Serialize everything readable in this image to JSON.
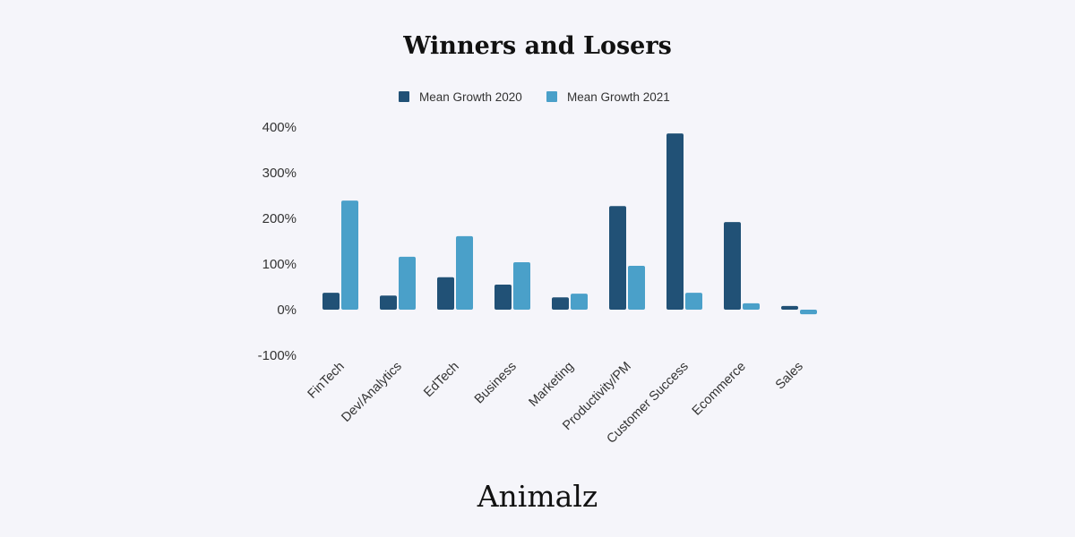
{
  "chart_data": {
    "type": "bar",
    "title": "Winners and Losers",
    "xlabel": "",
    "ylabel": "",
    "categories": [
      "FinTech",
      "Dev/Analytics",
      "EdTech",
      "Business",
      "Marketing",
      "Productivity/PM",
      "Customer Success",
      "Ecommerce",
      "Sales"
    ],
    "series": [
      {
        "name": "Mean Growth 2020",
        "color": "#215176",
        "values": [
          37,
          31,
          71,
          55,
          27,
          227,
          386,
          192,
          8
        ]
      },
      {
        "name": "Mean Growth 2021",
        "color": "#4aa0c9",
        "values": [
          239,
          116,
          161,
          104,
          35,
          96,
          37,
          14,
          -10
        ]
      }
    ],
    "ylim": [
      -100,
      400
    ],
    "yticks": [
      400,
      300,
      200,
      100,
      0,
      -100
    ],
    "ytick_labels": [
      "400%",
      "300%",
      "200%",
      "100%",
      "0%",
      "-100%"
    ],
    "grid": false,
    "legend_position": "top-center"
  },
  "branding": {
    "logo_text": "Animalz"
  }
}
